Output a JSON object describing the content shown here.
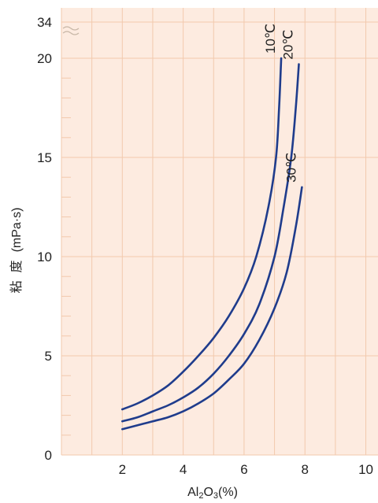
{
  "colors": {
    "plot_background": "#fdebe0",
    "gridline": "#f2c9ad",
    "series_line": "#1f3c8c",
    "text": "#222222"
  },
  "chart_data": {
    "type": "line",
    "title": "",
    "xlabel_parts": [
      "Al",
      "2",
      "O",
      "3",
      "(%)"
    ],
    "ylabel_parts": [
      "粘",
      "度",
      "(mPa·s)"
    ],
    "xlim": [
      0,
      10.4
    ],
    "ylim": [
      0,
      34
    ],
    "y_axis_break": {
      "from": 20,
      "to": 34
    },
    "x_ticks": [
      2,
      4,
      6,
      8,
      10
    ],
    "y_ticks": [
      0,
      5,
      10,
      15,
      20,
      34
    ],
    "x_minor_grid_step": 1,
    "y_minor_grid_step": 1,
    "grid": true,
    "series": [
      {
        "name": "10℃",
        "points": [
          [
            2,
            2.3
          ],
          [
            2.5,
            2.6
          ],
          [
            3,
            3.0
          ],
          [
            3.5,
            3.5
          ],
          [
            4,
            4.2
          ],
          [
            4.5,
            5.0
          ],
          [
            5,
            5.9
          ],
          [
            5.5,
            7.0
          ],
          [
            6,
            8.4
          ],
          [
            6.4,
            10.0
          ],
          [
            6.8,
            12.5
          ],
          [
            7.05,
            15.0
          ],
          [
            7.15,
            17.5
          ],
          [
            7.22,
            20.0
          ]
        ]
      },
      {
        "name": "20℃",
        "points": [
          [
            2,
            1.7
          ],
          [
            2.5,
            1.9
          ],
          [
            3,
            2.2
          ],
          [
            3.5,
            2.5
          ],
          [
            4,
            2.9
          ],
          [
            4.5,
            3.4
          ],
          [
            5,
            4.1
          ],
          [
            5.5,
            5.0
          ],
          [
            6,
            6.1
          ],
          [
            6.5,
            7.6
          ],
          [
            7,
            10.0
          ],
          [
            7.3,
            12.5
          ],
          [
            7.55,
            15.0
          ],
          [
            7.7,
            17.5
          ],
          [
            7.8,
            19.7
          ]
        ]
      },
      {
        "name": "30℃",
        "points": [
          [
            2,
            1.3
          ],
          [
            2.5,
            1.5
          ],
          [
            3,
            1.7
          ],
          [
            3.5,
            1.9
          ],
          [
            4,
            2.2
          ],
          [
            4.5,
            2.6
          ],
          [
            5,
            3.1
          ],
          [
            5.5,
            3.8
          ],
          [
            6,
            4.6
          ],
          [
            6.5,
            5.8
          ],
          [
            7,
            7.4
          ],
          [
            7.4,
            9.2
          ],
          [
            7.7,
            11.5
          ],
          [
            7.9,
            13.5
          ]
        ]
      }
    ]
  }
}
